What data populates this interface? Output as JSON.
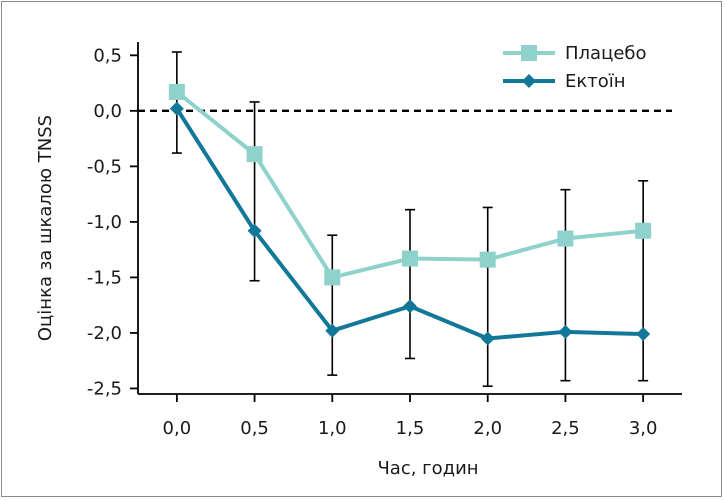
{
  "chart_data": {
    "type": "line",
    "xlabel": "Час, годин",
    "ylabel": "Оцінка за шкалою TNSS",
    "x": [
      0.0,
      0.5,
      1.0,
      1.5,
      2.0,
      2.5,
      3.0
    ],
    "x_tick_labels": [
      "0,0",
      "0,5",
      "1,0",
      "1,5",
      "2,0",
      "2,5",
      "3,0"
    ],
    "y_ticks": [
      0.5,
      0.0,
      -0.5,
      -1.0,
      -1.5,
      -2.0,
      -2.5
    ],
    "y_tick_labels": [
      "0,5",
      "0,0",
      "-0,5",
      "-1,0",
      "-1,5",
      "-2,0",
      "-2,5"
    ],
    "xlim": [
      -0.25,
      3.25
    ],
    "ylim": [
      -2.55,
      0.62
    ],
    "reference_line": 0.0,
    "legend_position": "top-right",
    "series": [
      {
        "name": "Плацебо",
        "color": "#8ed2cb",
        "marker": "square",
        "values": [
          0.17,
          -0.39,
          -1.5,
          -1.33,
          -1.34,
          -1.15,
          -1.08
        ]
      },
      {
        "name": "Ектоїн",
        "color": "#12789a",
        "marker": "diamond",
        "values": [
          0.02,
          -1.08,
          -1.98,
          -1.76,
          -2.05,
          -1.99,
          -2.01
        ],
        "error_low": [
          -0.38,
          -1.53,
          -2.38,
          -2.23,
          -2.48,
          -2.43,
          -2.43
        ],
        "error_high": [
          0.53,
          0.08,
          -1.12,
          -0.89,
          -0.87,
          -0.71,
          -0.63
        ]
      }
    ]
  }
}
